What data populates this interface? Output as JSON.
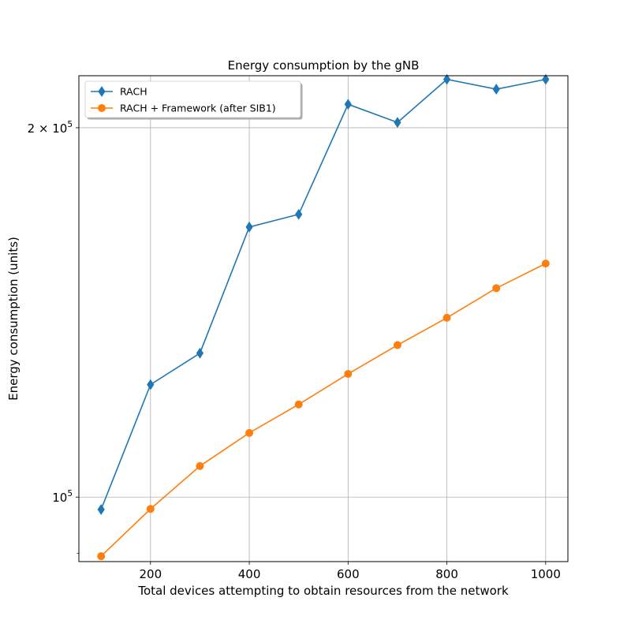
{
  "chart_data": {
    "type": "line",
    "title": "Energy consumption by the gNB",
    "xlabel": "Total devices attempting to obtain resources from the network",
    "ylabel": "Energy consumption (units)",
    "xlim": [
      55,
      1045
    ],
    "ylim": [
      88600,
      220500
    ],
    "yscale": "log",
    "grid": true,
    "legend_position": "top-left",
    "x_ticks": [
      {
        "value": 200,
        "label": "200"
      },
      {
        "value": 400,
        "label": "400"
      },
      {
        "value": 600,
        "label": "600"
      },
      {
        "value": 800,
        "label": "800"
      },
      {
        "value": 1000,
        "label": "1000"
      }
    ],
    "y_ticks": [
      {
        "value": 100000,
        "label_mantissa": "",
        "label_base": "10",
        "label_exp": "5"
      },
      {
        "value": 200000,
        "label_mantissa": "2 × ",
        "label_base": "10",
        "label_exp": "5"
      }
    ],
    "x": [
      100,
      200,
      300,
      400,
      500,
      600,
      700,
      800,
      900,
      1000
    ],
    "series": [
      {
        "name": "RACH",
        "color": "#1f77b4",
        "marker": "diamond",
        "values": [
          97700,
          123500,
          131000,
          166000,
          170000,
          209000,
          202000,
          219000,
          215000,
          219000
        ]
      },
      {
        "name": "RACH + Framework (after SIB1)",
        "color": "#ff7f0e",
        "marker": "circle",
        "values": [
          89500,
          97800,
          106000,
          112800,
          119000,
          126000,
          133000,
          140000,
          148000,
          155000
        ]
      }
    ]
  }
}
